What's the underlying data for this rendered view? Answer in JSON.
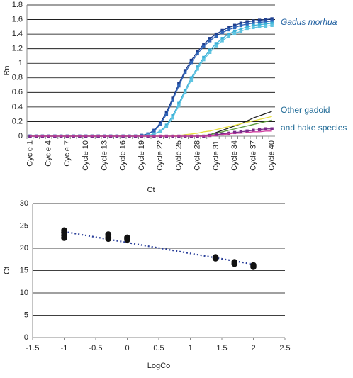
{
  "chart_data": [
    {
      "type": "line",
      "xlabel": "Ct",
      "ylabel": "Rn",
      "categories": [
        "Cycle 1",
        null,
        null,
        "Cycle 4",
        null,
        null,
        "Cycle 7",
        null,
        null,
        "Cycle 10",
        null,
        null,
        "Cycle 13",
        null,
        null,
        "Cycle 16",
        null,
        null,
        "Cycle 19",
        null,
        null,
        "Cycle 22",
        null,
        null,
        "Cycle 25",
        null,
        null,
        "Cycle 28",
        null,
        null,
        "Cycle 31",
        null,
        null,
        "Cycle 34",
        null,
        null,
        "Cycle 37",
        null,
        null,
        "Cycle 40"
      ],
      "ylim": [
        0,
        1.8
      ],
      "yticks": [
        0,
        0.2,
        0.4,
        0.6,
        0.8,
        1,
        1.2,
        1.4,
        1.6,
        1.8
      ],
      "grid": true,
      "annotations": [
        "Gadus morhua",
        "Other gadoid",
        "and hake species"
      ],
      "series": [
        {
          "color": "#1f3f8f",
          "markers": true,
          "values": [
            0,
            0,
            0,
            0,
            0,
            0,
            0,
            0,
            0,
            0,
            0,
            0,
            0,
            0,
            0,
            0,
            0,
            0,
            0.01,
            0.03,
            0.08,
            0.18,
            0.33,
            0.52,
            0.72,
            0.9,
            1.04,
            1.16,
            1.26,
            1.34,
            1.4,
            1.45,
            1.49,
            1.52,
            1.55,
            1.57,
            1.58,
            1.59,
            1.6,
            1.61
          ]
        },
        {
          "color": "#2e64b8",
          "markers": true,
          "values": [
            0,
            0,
            0,
            0,
            0,
            0,
            0,
            0,
            0,
            0,
            0,
            0,
            0,
            0,
            0,
            0,
            0,
            0,
            0.01,
            0.03,
            0.07,
            0.16,
            0.3,
            0.49,
            0.69,
            0.87,
            1.01,
            1.13,
            1.23,
            1.31,
            1.37,
            1.42,
            1.46,
            1.49,
            1.52,
            1.54,
            1.55,
            1.56,
            1.57,
            1.58
          ]
        },
        {
          "color": "#3ab0d8",
          "markers": true,
          "values": [
            0,
            0,
            0,
            0,
            0,
            0,
            0,
            0,
            0,
            0,
            0,
            0,
            0,
            0,
            0,
            0,
            0,
            0,
            0,
            0.01,
            0.03,
            0.07,
            0.15,
            0.28,
            0.45,
            0.63,
            0.8,
            0.95,
            1.08,
            1.18,
            1.27,
            1.34,
            1.4,
            1.44,
            1.47,
            1.5,
            1.52,
            1.53,
            1.54,
            1.55
          ]
        },
        {
          "color": "#5fc4e0",
          "markers": true,
          "values": [
            0,
            0,
            0,
            0,
            0,
            0,
            0,
            0,
            0,
            0,
            0,
            0,
            0,
            0,
            0,
            0,
            0,
            0,
            0,
            0.01,
            0.03,
            0.06,
            0.13,
            0.25,
            0.42,
            0.6,
            0.77,
            0.92,
            1.05,
            1.15,
            1.24,
            1.31,
            1.37,
            1.41,
            1.44,
            1.47,
            1.49,
            1.5,
            1.51,
            1.52
          ]
        },
        {
          "color": "#222222",
          "markers": false,
          "values": [
            0,
            0,
            0,
            0,
            0,
            0,
            0,
            0,
            0,
            0,
            0,
            0,
            0,
            0,
            0,
            0,
            0,
            0,
            0,
            0,
            0,
            0,
            0,
            0,
            0,
            0,
            0,
            0,
            0,
            0.02,
            0.05,
            0.08,
            0.11,
            0.14,
            0.17,
            0.21,
            0.25,
            0.28,
            0.31,
            0.34
          ]
        },
        {
          "color": "#e8e040",
          "markers": false,
          "values": [
            0,
            0,
            0,
            0,
            0,
            0,
            0,
            0,
            0,
            0,
            0,
            0,
            0,
            0,
            0,
            0,
            0,
            0,
            0,
            0,
            0,
            0,
            0,
            0,
            0.01,
            0.02,
            0.03,
            0.04,
            0.06,
            0.07,
            0.09,
            0.11,
            0.13,
            0.15,
            0.17,
            0.19,
            0.21,
            0.23,
            0.25,
            0.27
          ]
        },
        {
          "color": "#5a9a3a",
          "markers": false,
          "values": [
            0,
            0,
            0,
            0,
            0,
            0,
            0,
            0,
            0,
            0,
            0,
            0,
            0,
            0,
            0,
            0,
            0,
            0,
            0,
            0,
            0,
            0,
            0,
            0,
            0,
            0,
            0,
            0,
            0.01,
            0.02,
            0.04,
            0.06,
            0.08,
            0.1,
            0.12,
            0.14,
            0.16,
            0.18,
            0.2,
            0.22
          ]
        },
        {
          "color": "#7a2a8a",
          "markers": true,
          "values": [
            0,
            0,
            0,
            0,
            0,
            0,
            0,
            0,
            0,
            0,
            0,
            0,
            0,
            0,
            0,
            0,
            0,
            0,
            0,
            0,
            0,
            0,
            0,
            0,
            0,
            0,
            0,
            0,
            0,
            0.01,
            0.02,
            0.03,
            0.04,
            0.05,
            0.06,
            0.07,
            0.08,
            0.09,
            0.1,
            0.1
          ]
        },
        {
          "color": "#d040a0",
          "markers": false,
          "values": [
            0,
            0,
            0,
            0,
            0,
            0,
            0,
            0,
            0,
            0,
            0,
            0,
            0,
            0,
            0,
            0,
            0,
            0,
            0,
            0,
            0,
            0,
            0,
            0,
            0,
            0,
            0,
            0,
            0,
            0,
            0.01,
            0.02,
            0.03,
            0.04,
            0.04,
            0.05,
            0.06,
            0.06,
            0.07,
            0.07
          ]
        }
      ]
    },
    {
      "type": "scatter",
      "xlabel": "LogCo",
      "ylabel": "Ct",
      "xlim": [
        -1.5,
        2.5
      ],
      "xticks": [
        -1.5,
        -1,
        -0.5,
        0,
        0.5,
        1,
        1.5,
        2,
        2.5
      ],
      "ylim": [
        0,
        30
      ],
      "yticks": [
        0,
        5,
        10,
        15,
        20,
        25,
        30
      ],
      "grid": true,
      "color": "#111111",
      "x": [
        -1,
        -1,
        -1,
        -1,
        -0.3,
        -0.3,
        -0.3,
        -0.3,
        0,
        0,
        0,
        1.4,
        1.4,
        1.7,
        1.7,
        2,
        2
      ],
      "values": [
        22.3,
        22.9,
        23.5,
        24.0,
        22.1,
        22.5,
        22.9,
        23.1,
        21.9,
        22.2,
        22.4,
        17.7,
        18.0,
        16.5,
        16.9,
        15.8,
        16.2
      ],
      "trendline": {
        "color": "#2a3f9a",
        "x": [
          -1,
          2
        ],
        "values": [
          23.7,
          16.4
        ]
      }
    }
  ]
}
